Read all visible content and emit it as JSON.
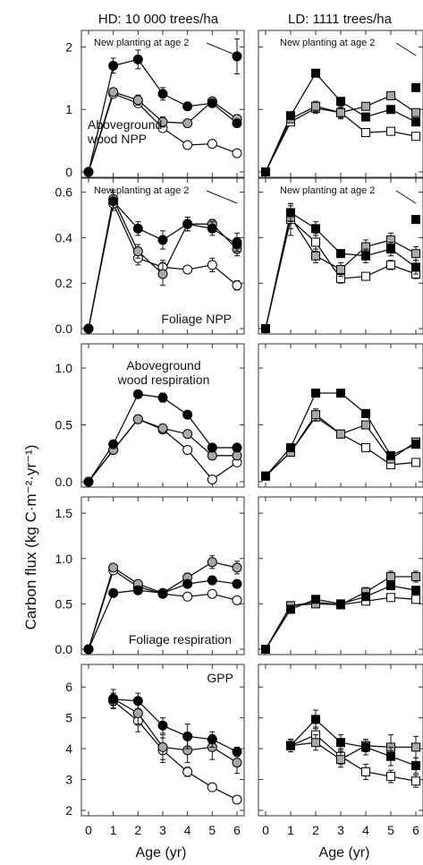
{
  "figure": {
    "ylabel": "Carbon flux (kg C·m⁻²·yr⁻¹)",
    "xlabel": "Age (yr)",
    "col_titles": [
      "HD: 10 000 trees/ha",
      "LD: 1111 trees/ha"
    ]
  },
  "colors": {
    "black": "#000000",
    "grey": "#a8a8a8",
    "white": "#ffffff",
    "axis": "#333333"
  },
  "chart_data": [
    {
      "type": "line",
      "panel": "HD aboveground wood NPP",
      "annotation": "Aboveground wood NPP",
      "annotation2": "New planting at age 2",
      "x": [
        0,
        1,
        2,
        3,
        4,
        5,
        6
      ],
      "xticks": [
        "0",
        "1",
        "2",
        "3",
        "4",
        "5",
        "6"
      ],
      "ylim": [
        0,
        2.15
      ],
      "yticks": [
        0,
        1,
        2
      ],
      "yticklabels": [
        "0",
        "1",
        "2"
      ],
      "series": [
        {
          "marker": "circle",
          "fill": "black",
          "values": [
            0,
            1.7,
            1.8,
            1.25,
            1.05,
            1.1,
            0.78
          ],
          "err": [
            0,
            0.12,
            0.15,
            0.1,
            0,
            0.06,
            0
          ]
        },
        {
          "marker": "circle",
          "fill": "grey",
          "values": [
            0,
            1.28,
            1.15,
            0.8,
            0.78,
            1.13,
            0.85
          ],
          "err": [
            0,
            0.06,
            0.08,
            0.08,
            0,
            0.06,
            0.05
          ]
        },
        {
          "marker": "circle",
          "fill": "white",
          "values": [
            0,
            1.25,
            1.1,
            0.7,
            0.43,
            0.45,
            0.3
          ],
          "err": [
            0,
            0,
            0.05,
            0,
            0,
            0,
            0
          ]
        }
      ],
      "extra_points": [
        {
          "x": 6,
          "y": 1.85,
          "err": 0.28,
          "fill": "black",
          "marker": "circle"
        }
      ]
    },
    {
      "type": "line",
      "panel": "LD aboveground wood NPP",
      "annotation2": "New planting at age 2",
      "x": [
        0,
        1,
        2,
        3,
        4,
        5,
        6
      ],
      "xticks": [
        "0",
        "1",
        "2",
        "3",
        "4",
        "5",
        "6"
      ],
      "ylim": [
        0,
        2.15
      ],
      "yticks": [
        0,
        1,
        2
      ],
      "series": [
        {
          "marker": "square",
          "fill": "black",
          "values": [
            0,
            0.9,
            1.58,
            1.13,
            0.88,
            1.0,
            0.8
          ],
          "err": [
            0,
            0,
            0.05,
            0.06,
            0.06,
            0,
            0.06
          ]
        },
        {
          "marker": "square",
          "fill": "grey",
          "values": [
            0,
            0.85,
            1.05,
            0.95,
            1.05,
            1.22,
            0.95
          ],
          "err": [
            0,
            0.05,
            0.08,
            0.08,
            0.06,
            0.05,
            0.06
          ]
        },
        {
          "marker": "square",
          "fill": "white",
          "values": [
            0,
            0.8,
            1.02,
            0.95,
            0.63,
            0.65,
            0.57
          ],
          "err": [
            0,
            0,
            0.08,
            0.1,
            0,
            0.05,
            0.06
          ]
        }
      ],
      "extra_points": [
        {
          "x": 6,
          "y": 1.35,
          "err": 0,
          "fill": "black",
          "marker": "square"
        }
      ]
    },
    {
      "type": "line",
      "panel": "HD foliage NPP",
      "annotation": "Foliage NPP",
      "annotation2": "New planting at age 2",
      "x": [
        0,
        1,
        2,
        3,
        4,
        5,
        6
      ],
      "xticks": [
        "0",
        "1",
        "2",
        "3",
        "4",
        "5",
        "6"
      ],
      "ylim": [
        0,
        0.63
      ],
      "yticks": [
        0,
        0.2,
        0.4,
        0.6
      ],
      "yticklabels": [
        "0.0",
        "0.2",
        "0.4",
        "0.6"
      ],
      "series": [
        {
          "marker": "circle",
          "fill": "black",
          "values": [
            0,
            0.56,
            0.44,
            0.39,
            0.46,
            0.44,
            0.37
          ],
          "err": [
            0,
            0.04,
            0.03,
            0.04,
            0.03,
            0.03,
            0.03
          ]
        },
        {
          "marker": "circle",
          "fill": "grey",
          "values": [
            0,
            0.57,
            0.34,
            0.24,
            0.46,
            0.46,
            0.35
          ],
          "err": [
            0,
            0.04,
            0.03,
            0.05,
            0.03,
            0.02,
            0.03
          ]
        },
        {
          "marker": "circle",
          "fill": "white",
          "values": [
            0,
            0.55,
            0.31,
            0.27,
            0.26,
            0.28,
            0.19
          ],
          "err": [
            0,
            0,
            0.03,
            0.03,
            0,
            0.03,
            0.02
          ]
        }
      ],
      "extra_points": [
        {
          "x": 6,
          "y": 0.38,
          "err": 0.04,
          "fill": "black",
          "marker": "circle"
        }
      ]
    },
    {
      "type": "line",
      "panel": "LD foliage NPP",
      "annotation2": "New planting at age 2",
      "x": [
        0,
        1,
        2,
        3,
        4,
        5,
        6
      ],
      "xticks": [
        "0",
        "1",
        "2",
        "3",
        "4",
        "5",
        "6"
      ],
      "ylim": [
        0,
        0.63
      ],
      "yticks": [
        0,
        0.2,
        0.4,
        0.6
      ],
      "series": [
        {
          "marker": "square",
          "fill": "black",
          "values": [
            0,
            0.51,
            0.44,
            0.33,
            0.32,
            0.35,
            0.27
          ],
          "err": [
            0,
            0.04,
            0.03,
            0,
            0.03,
            0.03,
            0.03
          ]
        },
        {
          "marker": "square",
          "fill": "grey",
          "values": [
            0,
            0.49,
            0.32,
            0.26,
            0.36,
            0.39,
            0.33
          ],
          "err": [
            0,
            0.05,
            0.03,
            0.03,
            0.03,
            0.03,
            0.03
          ]
        },
        {
          "marker": "square",
          "fill": "white",
          "values": [
            0,
            0.48,
            0.38,
            0.22,
            0.23,
            0.28,
            0.24
          ],
          "err": [
            0,
            0.07,
            0.04,
            0.02,
            0,
            0.02,
            0.02
          ]
        }
      ],
      "extra_points": [
        {
          "x": 6,
          "y": 0.48,
          "err": 0,
          "fill": "black",
          "marker": "square"
        }
      ]
    },
    {
      "type": "line",
      "panel": "HD aboveground wood respiration",
      "annotation": "Aboveground wood respiration",
      "x": [
        0,
        1,
        2,
        3,
        4,
        5,
        6
      ],
      "xticks": [
        "0",
        "1",
        "2",
        "3",
        "4",
        "5",
        "6"
      ],
      "ylim": [
        0,
        1.15
      ],
      "yticks": [
        0,
        0.5,
        1.0
      ],
      "yticklabels": [
        "0.0",
        "0.5",
        "1.0"
      ],
      "series": [
        {
          "marker": "circle",
          "fill": "black",
          "values": [
            0,
            0.33,
            0.77,
            0.74,
            0.59,
            0.3,
            0.3
          ],
          "err": [
            0,
            0,
            0.03,
            0.04,
            0,
            0,
            0
          ]
        },
        {
          "marker": "circle",
          "fill": "grey",
          "values": [
            0,
            0.28,
            0.55,
            0.47,
            0.42,
            0.23,
            0.23
          ],
          "err": [
            0,
            0,
            0,
            0,
            0,
            0,
            0
          ]
        },
        {
          "marker": "circle",
          "fill": "white",
          "values": [
            0,
            0.28,
            0.55,
            0.46,
            0.28,
            0.02,
            0.17
          ],
          "err": [
            0,
            0,
            0,
            0,
            0,
            0,
            0
          ]
        }
      ]
    },
    {
      "type": "line",
      "panel": "LD aboveground wood respiration",
      "x": [
        0,
        1,
        2,
        3,
        4,
        5,
        6
      ],
      "xticks": [
        "0",
        "1",
        "2",
        "3",
        "4",
        "5",
        "6"
      ],
      "ylim": [
        0,
        1.15
      ],
      "yticks": [
        0,
        0.5,
        1.0
      ],
      "series": [
        {
          "marker": "square",
          "fill": "black",
          "values": [
            0.05,
            0.3,
            0.78,
            0.78,
            0.6,
            0.23,
            0.33
          ],
          "err": [
            0,
            0,
            0,
            0,
            0,
            0,
            0
          ]
        },
        {
          "marker": "square",
          "fill": "grey",
          "values": [
            0.05,
            0.26,
            0.59,
            0.42,
            0.5,
            0.2,
            0.35
          ],
          "err": [
            0,
            0,
            0.05,
            0,
            0,
            0,
            0
          ]
        },
        {
          "marker": "square",
          "fill": "white",
          "values": [
            0.05,
            0.26,
            0.57,
            0.42,
            0.3,
            0.15,
            0.17
          ],
          "err": [
            0,
            0,
            0,
            0,
            0,
            0,
            0
          ]
        }
      ]
    },
    {
      "type": "line",
      "panel": "HD foliage respiration",
      "annotation": "Foliage respiration",
      "x": [
        0,
        1,
        2,
        3,
        4,
        5,
        6
      ],
      "xticks": [
        "0",
        "1",
        "2",
        "3",
        "4",
        "5",
        "6"
      ],
      "ylim": [
        0,
        1.6
      ],
      "yticks": [
        0,
        0.5,
        1.0,
        1.5
      ],
      "yticklabels": [
        "0.0",
        "0.5",
        "1.0",
        "1.5"
      ],
      "series": [
        {
          "marker": "circle",
          "fill": "black",
          "values": [
            0,
            0.62,
            0.65,
            0.62,
            0.72,
            0.76,
            0.72
          ],
          "err": [
            0,
            0,
            0,
            0,
            0,
            0,
            0
          ]
        },
        {
          "marker": "circle",
          "fill": "grey",
          "values": [
            0,
            0.9,
            0.72,
            0.62,
            0.79,
            0.96,
            0.9
          ],
          "err": [
            0,
            0.03,
            0,
            0,
            0.05,
            0.07,
            0.07
          ]
        },
        {
          "marker": "circle",
          "fill": "white",
          "values": [
            0,
            0.87,
            0.69,
            0.61,
            0.58,
            0.61,
            0.54
          ],
          "err": [
            0,
            0,
            0,
            0,
            0,
            0,
            0
          ]
        }
      ]
    },
    {
      "type": "line",
      "panel": "LD foliage respiration",
      "x": [
        0,
        1,
        2,
        3,
        4,
        5,
        6
      ],
      "xticks": [
        "0",
        "1",
        "2",
        "3",
        "4",
        "5",
        "6"
      ],
      "ylim": [
        0,
        1.6
      ],
      "yticks": [
        0,
        0.5,
        1.0,
        1.5
      ],
      "series": [
        {
          "marker": "square",
          "fill": "black",
          "values": [
            0,
            0.44,
            0.55,
            0.5,
            0.58,
            0.7,
            0.65
          ],
          "err": [
            0,
            0,
            0,
            0,
            0,
            0,
            0
          ]
        },
        {
          "marker": "square",
          "fill": "grey",
          "values": [
            0,
            0.48,
            0.5,
            0.49,
            0.63,
            0.8,
            0.8
          ],
          "err": [
            0,
            0,
            0,
            0,
            0.05,
            0.06,
            0.06
          ]
        },
        {
          "marker": "square",
          "fill": "white",
          "values": [
            0,
            0.48,
            0.52,
            0.49,
            0.53,
            0.57,
            0.55
          ],
          "err": [
            0,
            0,
            0,
            0,
            0,
            0,
            0
          ]
        }
      ]
    },
    {
      "type": "line",
      "panel": "HD GPP",
      "annotation": "GPP",
      "x": [
        1,
        2,
        3,
        4,
        5,
        6
      ],
      "xticks": [
        "0",
        "1",
        "2",
        "3",
        "4",
        "5",
        "6"
      ],
      "ylim": [
        2,
        6.5
      ],
      "yticks": [
        2,
        3,
        4,
        5,
        6
      ],
      "yticklabels": [
        "2",
        "3",
        "4",
        "5",
        "6"
      ],
      "series": [
        {
          "marker": "circle",
          "fill": "black",
          "values": [
            5.6,
            5.55,
            4.75,
            4.4,
            4.3,
            3.9
          ],
          "err": [
            0.2,
            0.25,
            0.25,
            0.4,
            0.25,
            0.15
          ]
        },
        {
          "marker": "circle",
          "fill": "grey",
          "values": [
            5.62,
            5.15,
            4.05,
            3.95,
            4.05,
            3.55
          ],
          "err": [
            0.3,
            0.35,
            0.4,
            0.4,
            0.4,
            0.35
          ]
        },
        {
          "marker": "circle",
          "fill": "white",
          "values": [
            5.55,
            4.9,
            3.95,
            3.25,
            2.75,
            2.35
          ],
          "err": [
            0.25,
            0.35,
            0.4,
            0.15,
            0.1,
            0.1
          ]
        }
      ]
    },
    {
      "type": "line",
      "panel": "LD GPP",
      "x": [
        1,
        2,
        3,
        4,
        5,
        6
      ],
      "xticks": [
        "0",
        "1",
        "2",
        "3",
        "4",
        "5",
        "6"
      ],
      "ylim": [
        2,
        6.5
      ],
      "yticks": [
        2,
        3,
        4,
        5,
        6
      ],
      "series": [
        {
          "marker": "square",
          "fill": "black",
          "values": [
            4.1,
            4.95,
            4.2,
            4.05,
            3.75,
            3.45
          ],
          "err": [
            0.2,
            0.3,
            0.25,
            0.25,
            0.3,
            0.25
          ]
        },
        {
          "marker": "square",
          "fill": "grey",
          "values": [
            4.1,
            4.2,
            3.65,
            4.1,
            4.05,
            4.05
          ],
          "err": [
            0.2,
            0.25,
            0.25,
            0.2,
            0.4,
            0.35
          ]
        },
        {
          "marker": "square",
          "fill": "white",
          "values": [
            4.1,
            4.45,
            3.75,
            3.25,
            3.1,
            2.95
          ],
          "err": [
            0.2,
            0.25,
            0.25,
            0.25,
            0.2,
            0.2
          ]
        }
      ]
    }
  ]
}
